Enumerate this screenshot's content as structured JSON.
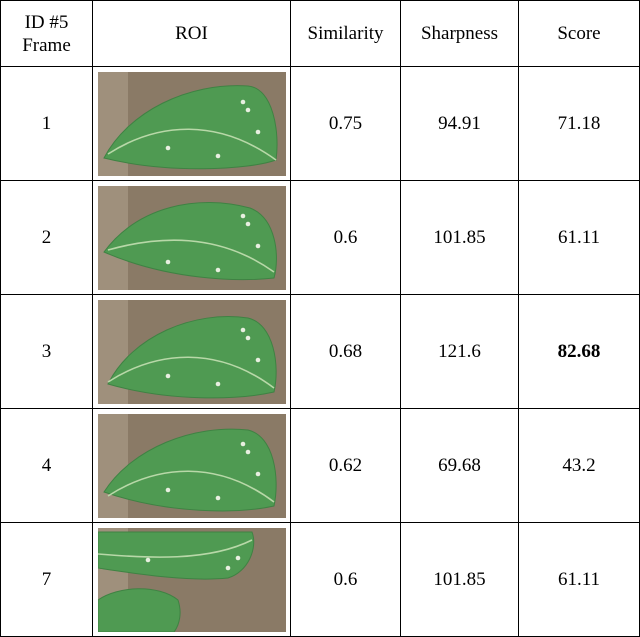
{
  "table": {
    "headers": {
      "frame": "ID #5\nFrame",
      "roi": "ROI",
      "similarity": "Similarity",
      "sharpness": "Sharpness",
      "score": "Score"
    },
    "rows": [
      {
        "frame": "1",
        "roi": "leaf-roi-image",
        "similarity": "0.75",
        "sharpness": "94.91",
        "score": "71.18",
        "best": false
      },
      {
        "frame": "2",
        "roi": "leaf-roi-image",
        "similarity": "0.6",
        "sharpness": "101.85",
        "score": "61.11",
        "best": false
      },
      {
        "frame": "3",
        "roi": "leaf-roi-image",
        "similarity": "0.68",
        "sharpness": "121.6",
        "score": "82.68",
        "best": true
      },
      {
        "frame": "4",
        "roi": "leaf-roi-image",
        "similarity": "0.62",
        "sharpness": "69.68",
        "score": "43.2",
        "best": false
      },
      {
        "frame": "7",
        "roi": "leaf-roi-image",
        "similarity": "0.6",
        "sharpness": "101.85",
        "score": "61.11",
        "best": false
      }
    ]
  },
  "colors": {
    "leaf": "#4f9a52",
    "leaf_dark": "#3f8243",
    "vein": "#b8d8a8",
    "background": "#8a7a66"
  }
}
